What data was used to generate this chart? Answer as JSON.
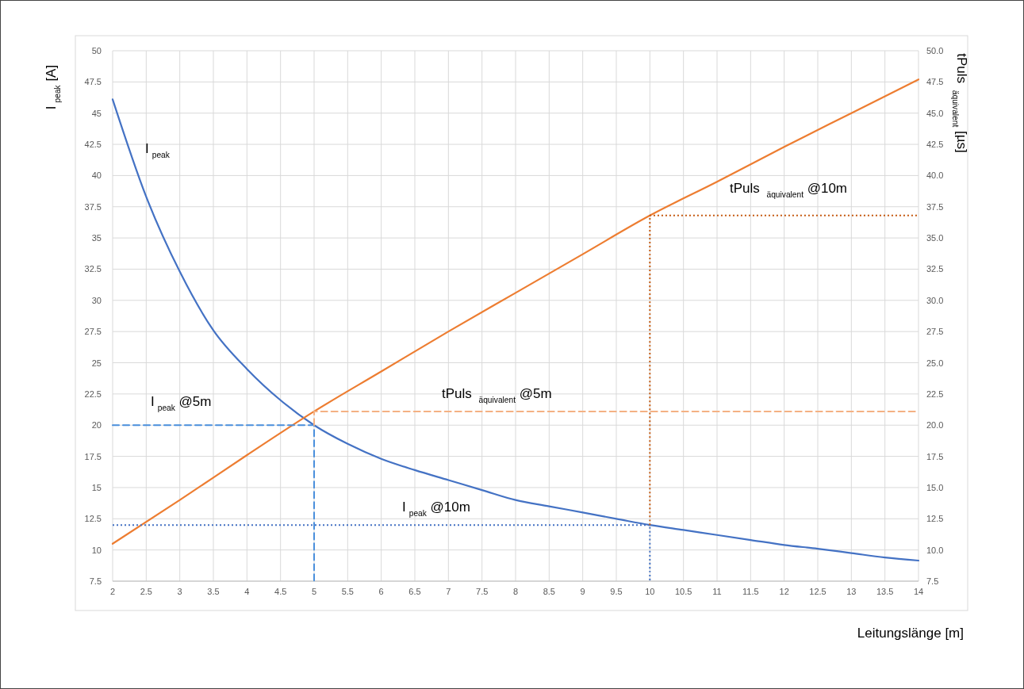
{
  "chart_data": {
    "type": "line",
    "xlabel": "Leitungslänge [m]",
    "ylabel": "I$_{peak}$ [A]",
    "y2label": "tPuls $_{äquivalent}$ [µs]",
    "xlim": [
      2,
      14
    ],
    "xticks": [
      2,
      2.5,
      3,
      3.5,
      4,
      4.5,
      5,
      5.5,
      6,
      6.5,
      7,
      7.5,
      8,
      8.5,
      9,
      9.5,
      10,
      10.5,
      11,
      11.5,
      12,
      12.5,
      13,
      13.5,
      14
    ],
    "ylim": [
      7.5,
      50
    ],
    "yticks": [
      7.5,
      10,
      12.5,
      15,
      17.5,
      20,
      22.5,
      25,
      27.5,
      30,
      32.5,
      35,
      37.5,
      40,
      42.5,
      45,
      47.5,
      50
    ],
    "y2lim": [
      7.5,
      50
    ],
    "y2ticks": [
      {
        "value": 7.5,
        "label": "7.5"
      },
      {
        "value": 10,
        "label": "10.0"
      },
      {
        "value": 12.5,
        "label": "12.5"
      },
      {
        "value": 15,
        "label": "15.0"
      },
      {
        "value": 17.5,
        "label": "17.5"
      },
      {
        "value": 20,
        "label": "20.0"
      },
      {
        "value": 22.5,
        "label": "22.5"
      },
      {
        "value": 25,
        "label": "25.0"
      },
      {
        "value": 27.5,
        "label": "27.5"
      },
      {
        "value": 30,
        "label": "30.0"
      },
      {
        "value": 32.5,
        "label": "32.5"
      },
      {
        "value": 35,
        "label": "35.0"
      },
      {
        "value": 37.5,
        "label": "37.5"
      },
      {
        "value": 40,
        "label": "40.0"
      },
      {
        "value": 42.5,
        "label": "42.5"
      },
      {
        "value": 45,
        "label": "45.0"
      },
      {
        "value": 47.5,
        "label": "47.5"
      },
      {
        "value": 50,
        "label": "50.0"
      }
    ],
    "grid": true,
    "line_style": "solid",
    "x": [
      2,
      2.5,
      3,
      3.5,
      4,
      4.5,
      5,
      5.5,
      6,
      6.5,
      7,
      7.5,
      8,
      8.5,
      9,
      9.5,
      10,
      10.5,
      11,
      11.5,
      12,
      12.5,
      13,
      13.5,
      14
    ],
    "series": [
      {
        "color": "#4472c4",
        "values": [
          46.1,
          38.3,
          32.3,
          27.6,
          24.5,
          22.0,
          20.0,
          18.5,
          17.3,
          16.4,
          15.6,
          14.8,
          14.0,
          13.5,
          13.0,
          12.5,
          12.0,
          11.6,
          11.2,
          10.8,
          10.4,
          10.1,
          9.75,
          9.4,
          9.15
        ]
      },
      {
        "color": "#ed7d31",
        "x": [
          2,
          3,
          4,
          5,
          6,
          7,
          8,
          9,
          10,
          11,
          12,
          13,
          14
        ],
        "values": [
          10.5,
          14.0,
          17.6,
          21.1,
          24.3,
          27.5,
          30.6,
          33.7,
          36.8,
          39.5,
          42.3,
          45.0,
          47.7
        ]
      },
      {
        "color": "#4a8fdc",
        "line_style": "dashed",
        "x": [
          2,
          5,
          5
        ],
        "values": [
          20,
          20,
          7.5
        ]
      },
      {
        "color": "#f4b183",
        "line_style": "dashed",
        "x": [
          5,
          5,
          14
        ],
        "values": [
          20,
          21.1,
          21.1
        ]
      },
      {
        "color": "#4472c4",
        "line_style": "dotted",
        "x": [
          2,
          10,
          10
        ],
        "values": [
          12,
          12,
          7.5
        ]
      },
      {
        "color": "#c55a11",
        "line_style": "dotted",
        "x": [
          10,
          10,
          14
        ],
        "values": [
          12,
          36.8,
          36.8
        ]
      }
    ],
    "annotations": [
      "I$_{peak}$",
      "I$_{peak}$ @5m",
      "tPuls $_{äquivalent}$ @5m",
      "I$_{peak}$ @10m",
      "tPuls $_{äquivalent}$ @10m"
    ]
  }
}
